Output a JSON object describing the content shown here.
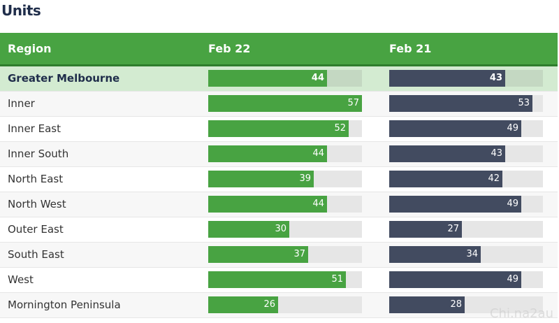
{
  "title": "Units",
  "headers": {
    "region": "Region",
    "feb22": "Feb 22",
    "feb21": "Feb 21"
  },
  "colors": {
    "header": "#48a342",
    "feb22_bar": "#48a342",
    "feb21_bar": "#424b60",
    "highlight_row": "#d3ebd1"
  },
  "watermark": "Chi.na2au",
  "chart_data": {
    "type": "bar",
    "categories": [
      "Greater Melbourne",
      "Inner",
      "Inner East",
      "Inner South",
      "North East",
      "North West",
      "Outer East",
      "South East",
      "West",
      "Mornington Peninsula"
    ],
    "series": [
      {
        "name": "Feb 22",
        "values": [
          44,
          57,
          52,
          44,
          39,
          44,
          30,
          37,
          51,
          26
        ]
      },
      {
        "name": "Feb 21",
        "values": [
          43,
          53,
          49,
          43,
          42,
          49,
          27,
          34,
          49,
          28
        ]
      }
    ],
    "xlim": [
      0,
      57
    ]
  }
}
